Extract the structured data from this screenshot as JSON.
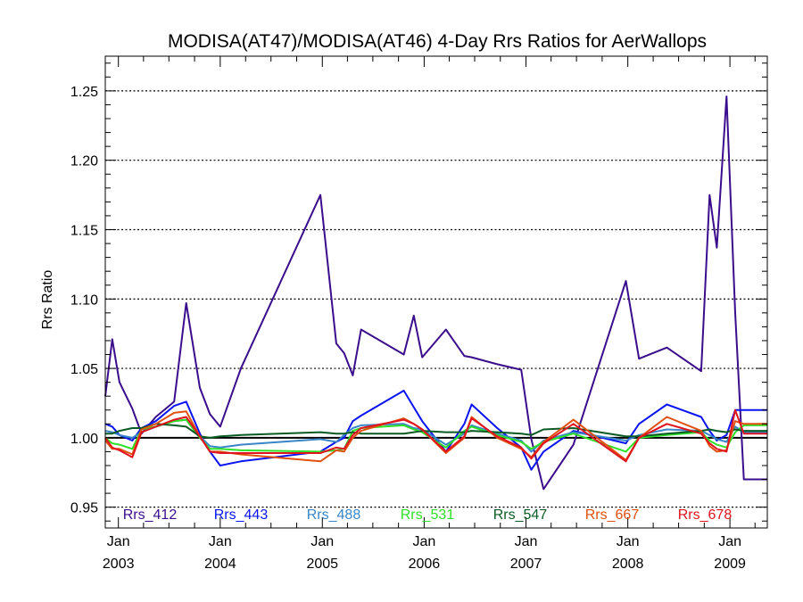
{
  "chart_data": {
    "type": "line",
    "title": "MODISA(AT47)/MODISA(AT46) 4-Day Rrs Ratios for AerWallops",
    "xlabel": "",
    "ylabel": "Rrs Ratio",
    "ylim": [
      0.935,
      1.275
    ],
    "yticks": [
      "0.95",
      "1.00",
      "1.05",
      "1.10",
      "1.15",
      "1.20",
      "1.25"
    ],
    "xlim": [
      "2002-11-15",
      "2009-05-15"
    ],
    "xticks": [
      {
        "month": "Jan",
        "year": "2003"
      },
      {
        "month": "Jan",
        "year": "2004"
      },
      {
        "month": "Jan",
        "year": "2005"
      },
      {
        "month": "Jan",
        "year": "2006"
      },
      {
        "month": "Jan",
        "year": "2007"
      },
      {
        "month": "Jan",
        "year": "2008"
      },
      {
        "month": "Jan",
        "year": "2009"
      }
    ],
    "grid": "horizontal dotted",
    "reference_line": 1.0,
    "legend_position": "bottom",
    "x": [
      "2002-11-15",
      "2002-12-10",
      "2003-01-05",
      "2003-02-20",
      "2003-03-25",
      "2003-05-15",
      "2003-07-20",
      "2003-09-01",
      "2003-10-20",
      "2003-11-25",
      "2004-01-01",
      "2004-03-15",
      "2004-12-25",
      "2005-02-20",
      "2005-03-20",
      "2005-04-20",
      "2005-05-20",
      "2005-10-20",
      "2005-11-25",
      "2005-12-25",
      "2006-03-20",
      "2006-05-25",
      "2006-06-20",
      "2006-09-20",
      "2006-12-15",
      "2007-01-20",
      "2007-03-05",
      "2007-06-20",
      "2007-12-25",
      "2008-02-10",
      "2008-05-20",
      "2008-09-20",
      "2008-10-20",
      "2008-11-15",
      "2008-12-20",
      "2009-01-20",
      "2009-02-20",
      "2009-04-01",
      "2009-05-15"
    ],
    "series": [
      {
        "name": "Rrs_412",
        "color": "#3a0d8c",
        "values": [
          1.03,
          1.071,
          1.04,
          1.021,
          1.003,
          1.015,
          1.026,
          1.097,
          1.036,
          1.017,
          1.008,
          1.05,
          1.175,
          1.068,
          1.061,
          1.045,
          1.078,
          1.06,
          1.088,
          1.058,
          1.078,
          1.059,
          1.058,
          1.053,
          1.049,
          0.999,
          0.963,
          0.995,
          1.113,
          1.057,
          1.065,
          1.048,
          1.175,
          1.137,
          1.246,
          1.09,
          0.97,
          0.97,
          0.97
        ]
      },
      {
        "name": "Rrs_443",
        "color": "#0a14f0",
        "values": [
          1.01,
          1.008,
          1.002,
          0.998,
          1.007,
          1.012,
          1.023,
          1.026,
          1.003,
          0.99,
          0.98,
          0.983,
          0.99,
          0.997,
          1.0,
          1.012,
          1.016,
          1.034,
          1.022,
          1.012,
          0.99,
          1.01,
          1.024,
          1.007,
          0.993,
          0.977,
          0.99,
          1.005,
          0.996,
          1.01,
          1.024,
          1.015,
          1.005,
          0.998,
          1.002,
          1.02,
          1.02,
          1.02,
          1.02
        ]
      },
      {
        "name": "Rrs_488",
        "color": "#3a86c8",
        "values": [
          1.005,
          1.004,
          1.002,
          1.0,
          1.004,
          1.008,
          1.012,
          1.013,
          1.001,
          0.994,
          0.993,
          0.995,
          0.999,
          0.997,
          1.002,
          1.007,
          1.009,
          1.01,
          1.007,
          1.006,
          0.995,
          1.003,
          1.009,
          1.003,
          0.998,
          0.99,
          0.998,
          1.004,
          0.998,
          1.002,
          1.006,
          1.005,
          1.002,
          0.999,
          0.997,
          1.008,
          1.004,
          1.004,
          1.004
        ]
      },
      {
        "name": "Rrs_531",
        "color": "#2ee028",
        "values": [
          1.0,
          0.996,
          0.995,
          0.992,
          1.006,
          1.008,
          1.012,
          1.013,
          1.0,
          0.992,
          0.992,
          0.991,
          0.99,
          0.991,
          0.992,
          1.005,
          1.007,
          1.009,
          1.006,
          1.004,
          0.993,
          1.005,
          1.008,
          1.002,
          0.997,
          0.992,
          0.997,
          1.003,
          0.99,
          1.0,
          1.002,
          1.004,
          0.998,
          0.995,
          0.993,
          1.004,
          1.009,
          1.009,
          1.009
        ]
      },
      {
        "name": "Rrs_547",
        "color": "#0a5a23",
        "values": [
          1.003,
          1.003,
          1.005,
          1.007,
          1.007,
          1.01,
          1.009,
          1.008,
          1.001,
          1.0,
          1.001,
          1.002,
          1.004,
          1.003,
          1.003,
          1.004,
          1.003,
          1.003,
          1.004,
          1.005,
          1.004,
          1.004,
          1.005,
          1.004,
          1.003,
          1.002,
          1.006,
          1.007,
          1.001,
          1.001,
          1.003,
          1.005,
          1.006,
          1.005,
          1.004,
          1.006,
          1.005,
          1.005,
          1.005
        ]
      },
      {
        "name": "Rrs_667",
        "color": "#e05010",
        "values": [
          0.998,
          0.992,
          0.992,
          0.988,
          1.006,
          1.01,
          1.018,
          1.019,
          1.001,
          0.99,
          0.99,
          0.988,
          0.983,
          0.991,
          0.99,
          1.0,
          1.005,
          1.014,
          1.01,
          1.006,
          0.989,
          1.0,
          1.015,
          1.0,
          0.992,
          0.986,
          0.997,
          1.013,
          0.984,
          1.0,
          1.015,
          1.005,
          0.994,
          0.99,
          0.991,
          1.012,
          1.01,
          1.01,
          1.01
        ]
      },
      {
        "name": "Rrs_678",
        "color": "#e0141e",
        "values": [
          1.0,
          0.993,
          0.991,
          0.986,
          1.004,
          1.008,
          1.013,
          1.015,
          1.001,
          0.99,
          0.989,
          0.989,
          0.989,
          0.993,
          0.992,
          1.002,
          1.007,
          1.013,
          1.01,
          1.006,
          0.99,
          1.001,
          1.014,
          1.001,
          0.993,
          0.985,
          0.996,
          1.01,
          0.983,
          1.0,
          1.01,
          1.003,
          0.996,
          0.992,
          0.99,
          1.02,
          1.003,
          1.003,
          1.003
        ]
      }
    ]
  }
}
